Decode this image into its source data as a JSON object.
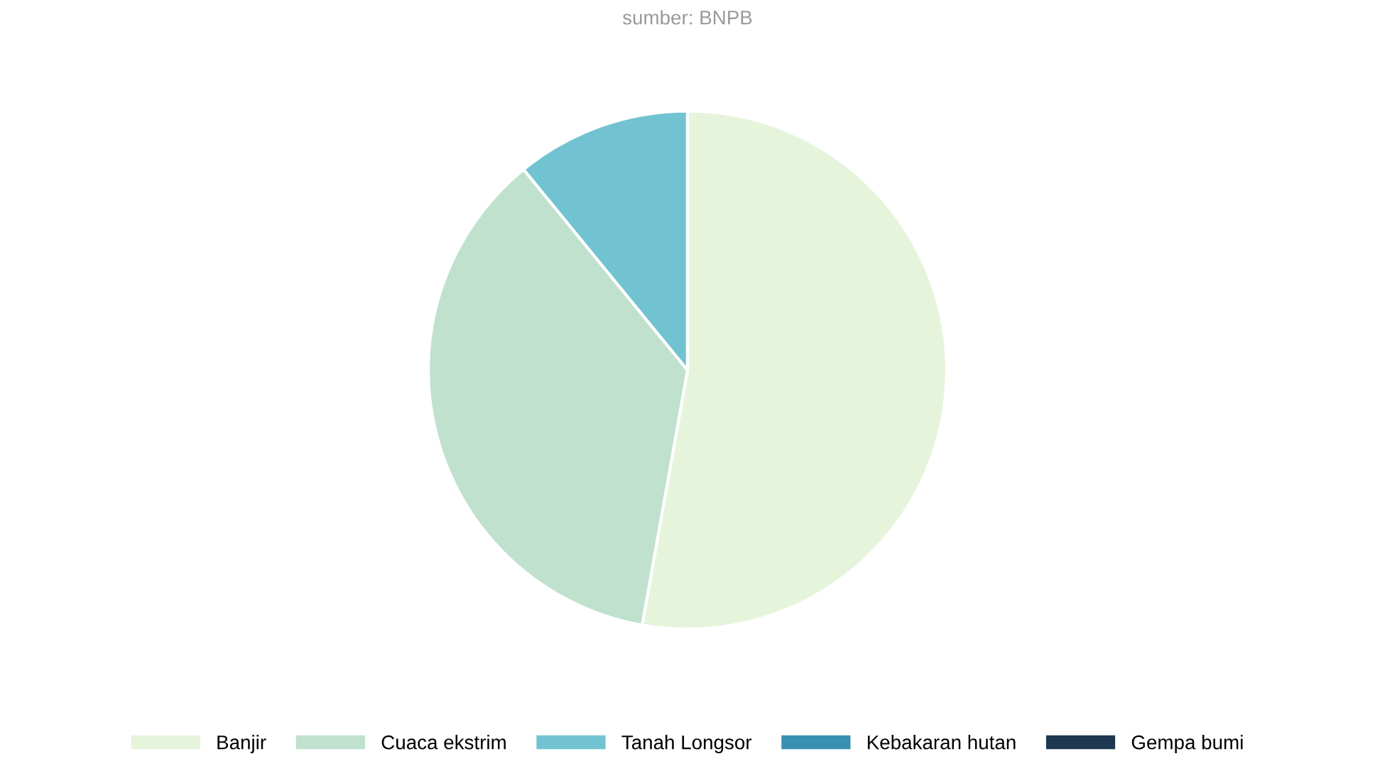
{
  "chart_data": {
    "type": "pie",
    "subtitle": "sumber: BNPB",
    "categories": [
      "Banjir",
      "Cuaca ekstrim",
      "Tanah Longsor",
      "Kebakaran hutan",
      "Gempa bumi"
    ],
    "values": [
      52.8,
      36.3,
      10.9,
      0,
      0
    ],
    "colors": [
      "#e6f4dc",
      "#bfe1cd",
      "#72c3d1",
      "#3a90b0",
      "#1d3850"
    ],
    "legend": "bottom"
  }
}
